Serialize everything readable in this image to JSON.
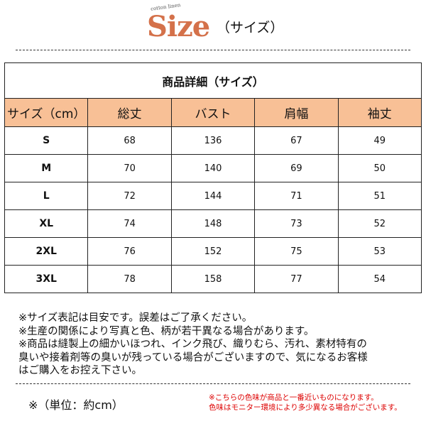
{
  "header": {
    "logo": "Size",
    "tagline": "cotton linen",
    "subtitle": "（サイズ）",
    "accent": "#d4714a"
  },
  "table": {
    "title": "商品詳細（サイズ）",
    "header_bg": "#f8c096",
    "columns": [
      "サイズ（cm）",
      "総丈",
      "バスト",
      "肩幅",
      "袖丈"
    ],
    "rows": [
      [
        "S",
        "68",
        "136",
        "67",
        "49"
      ],
      [
        "M",
        "70",
        "140",
        "69",
        "50"
      ],
      [
        "L",
        "72",
        "144",
        "71",
        "51"
      ],
      [
        "XL",
        "74",
        "148",
        "73",
        "52"
      ],
      [
        "2XL",
        "76",
        "152",
        "75",
        "53"
      ],
      [
        "3XL",
        "78",
        "158",
        "77",
        "54"
      ]
    ]
  },
  "notes": [
    "※サイズ表記は目安です。誤差はご了承ください。",
    "※生産の関係により写真と色、柄が若干異なる場合があります。",
    "※商品は縫製上の細かいほつれ、インク飛び、織りむら、汚れ、素材特有の",
    "臭いや接着剤等の臭いが残っている場合がございますので、気になるお客様",
    "はご購入をお控え下さい。"
  ],
  "unit_note": "※（単位：約cm）",
  "color_note": [
    "※こちらの色味が商品と一番近いものになります。",
    "色味はモニター環境により多少異なる場合がございます。"
  ]
}
